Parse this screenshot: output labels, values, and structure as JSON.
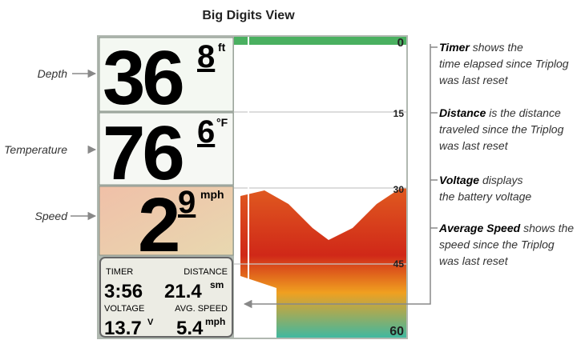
{
  "title": "Big Digits View",
  "callouts_left": [
    "Depth",
    "Temperature",
    "Speed"
  ],
  "display": {
    "depth": {
      "whole": "36",
      "decimal": "8",
      "unit": "ft"
    },
    "temperature": {
      "whole": "76",
      "decimal": "6",
      "unit": "°F"
    },
    "speed": {
      "whole": "2",
      "decimal": "9",
      "unit": "mph"
    },
    "triplog": {
      "timer_label": "TIMER",
      "distance_label": "DISTANCE",
      "timer": "3:56",
      "distance": "21.4",
      "distance_unit": "sm",
      "voltage_label": "VOLTAGE",
      "avg_speed_label": "AVG. SPEED",
      "voltage": "13.7",
      "voltage_unit": "V",
      "avg_speed": "5.4",
      "avg_speed_unit": "mph"
    },
    "depth_scale": [
      "0",
      "15",
      "30",
      "45",
      "60"
    ]
  },
  "callouts_right": [
    {
      "term": "Timer",
      "lines": [
        "shows the",
        "time elapsed since Triplog",
        "was last reset"
      ]
    },
    {
      "term": "Distance",
      "lines": [
        "is the distance",
        "traveled since the Triplog",
        "was last reset"
      ]
    },
    {
      "term": "Voltage",
      "lines": [
        "displays",
        "the battery voltage"
      ]
    },
    {
      "term": "Average Speed",
      "lines": [
        "shows the",
        "speed since the Triplog",
        "was last reset"
      ]
    }
  ]
}
